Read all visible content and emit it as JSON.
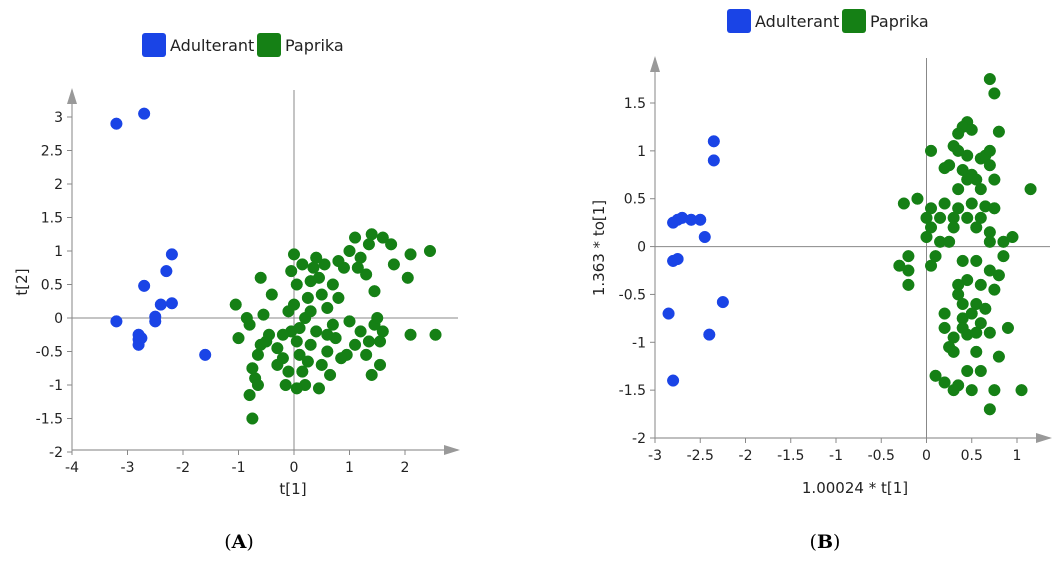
{
  "chart_data": [
    {
      "type": "scatter",
      "panel_label": "A",
      "xlabel": "t[1]",
      "ylabel": "t[2]",
      "xlim": [
        -4,
        2.5
      ],
      "ylim": [
        -2,
        3.25
      ],
      "x_ticks": [
        -4,
        -3,
        -2,
        -1,
        0,
        1,
        2
      ],
      "y_ticks": [
        3,
        2.5,
        2,
        1.5,
        1,
        0.5,
        0,
        -0.5,
        -1,
        -1.5,
        -2
      ],
      "x_tick_labels": [
        "-4",
        "-3",
        "-2",
        "-1",
        "0",
        "1",
        "2"
      ],
      "y_tick_labels": [
        "3",
        "2.5",
        "2",
        "1.5",
        "1",
        "0.5",
        "0",
        "-0.5",
        "-1",
        "-1.5",
        "-2"
      ],
      "legend": [
        "Adulterant",
        "Paprika"
      ],
      "legend_position": "top",
      "colors": {
        "Adulterant": "#1a44e6",
        "Paprika": "#158015"
      },
      "series": [
        {
          "name": "Adulterant",
          "points": [
            [
              -3.2,
              2.9
            ],
            [
              -2.7,
              3.05
            ],
            [
              -2.7,
              0.48
            ],
            [
              -2.2,
              0.95
            ],
            [
              -2.3,
              0.7
            ],
            [
              -2.2,
              0.22
            ],
            [
              -2.4,
              0.2
            ],
            [
              -3.2,
              -0.05
            ],
            [
              -2.5,
              0.02
            ],
            [
              -2.5,
              -0.05
            ],
            [
              -2.8,
              -0.25
            ],
            [
              -2.8,
              -0.32
            ],
            [
              -2.8,
              -0.4
            ],
            [
              -2.75,
              -0.3
            ],
            [
              -1.6,
              -0.55
            ]
          ]
        },
        {
          "name": "Paprika",
          "points": [
            [
              -1.05,
              0.2
            ],
            [
              -1.0,
              -0.3
            ],
            [
              -0.8,
              -0.1
            ],
            [
              -0.6,
              0.6
            ],
            [
              -0.55,
              0.05
            ],
            [
              -0.4,
              0.35
            ],
            [
              -0.6,
              -0.4
            ],
            [
              -0.65,
              -0.55
            ],
            [
              -0.7,
              -0.9
            ],
            [
              -0.65,
              -1.0
            ],
            [
              -0.8,
              -1.15
            ],
            [
              -0.75,
              -0.75
            ],
            [
              -0.45,
              -0.25
            ],
            [
              -0.3,
              -0.45
            ],
            [
              -0.2,
              -0.6
            ],
            [
              -0.3,
              -0.7
            ],
            [
              -0.1,
              -0.8
            ],
            [
              -0.15,
              -1.0
            ],
            [
              -0.1,
              0.1
            ],
            [
              -0.05,
              0.7
            ],
            [
              0.0,
              0.95
            ],
            [
              0.05,
              0.5
            ],
            [
              0.0,
              0.2
            ],
            [
              -0.05,
              -0.2
            ],
            [
              0.05,
              -0.35
            ],
            [
              0.1,
              -0.55
            ],
            [
              0.15,
              -0.8
            ],
            [
              0.2,
              -1.0
            ],
            [
              0.05,
              -1.05
            ],
            [
              0.2,
              0.0
            ],
            [
              0.25,
              0.3
            ],
            [
              0.3,
              0.55
            ],
            [
              0.35,
              0.75
            ],
            [
              0.4,
              0.9
            ],
            [
              0.45,
              0.6
            ],
            [
              0.5,
              0.35
            ],
            [
              0.55,
              0.8
            ],
            [
              0.6,
              0.15
            ],
            [
              0.7,
              -0.1
            ],
            [
              0.75,
              -0.3
            ],
            [
              0.6,
              -0.5
            ],
            [
              0.5,
              -0.7
            ],
            [
              0.65,
              -0.85
            ],
            [
              0.3,
              -0.4
            ],
            [
              0.4,
              -0.2
            ],
            [
              0.7,
              0.5
            ],
            [
              0.8,
              0.85
            ],
            [
              0.9,
              0.75
            ],
            [
              1.0,
              1.0
            ],
            [
              1.1,
              1.2
            ],
            [
              1.2,
              0.9
            ],
            [
              1.3,
              0.65
            ],
            [
              1.35,
              1.1
            ],
            [
              1.4,
              1.25
            ],
            [
              1.45,
              0.4
            ],
            [
              1.0,
              -0.05
            ],
            [
              1.1,
              -0.4
            ],
            [
              1.2,
              -0.2
            ],
            [
              0.95,
              -0.55
            ],
            [
              0.85,
              -0.6
            ],
            [
              1.3,
              -0.55
            ],
            [
              1.4,
              -0.85
            ],
            [
              1.35,
              -0.35
            ],
            [
              1.55,
              -0.7
            ],
            [
              1.55,
              -0.35
            ],
            [
              1.6,
              -0.2
            ],
            [
              1.45,
              -0.1
            ],
            [
              1.6,
              1.2
            ],
            [
              1.75,
              1.1
            ],
            [
              1.8,
              0.8
            ],
            [
              2.05,
              0.6
            ],
            [
              2.1,
              0.95
            ],
            [
              2.1,
              -0.25
            ],
            [
              2.45,
              1.0
            ],
            [
              2.55,
              -0.25
            ],
            [
              1.5,
              0.0
            ],
            [
              1.15,
              0.75
            ],
            [
              0.8,
              0.3
            ],
            [
              0.3,
              0.1
            ],
            [
              0.1,
              -0.15
            ],
            [
              0.25,
              -0.65
            ],
            [
              0.6,
              -0.25
            ],
            [
              -0.2,
              -0.25
            ],
            [
              -0.5,
              -0.35
            ],
            [
              -0.85,
              0.0
            ],
            [
              -0.75,
              -1.5
            ],
            [
              0.15,
              0.8
            ],
            [
              0.45,
              -1.05
            ]
          ]
        }
      ]
    },
    {
      "type": "scatter",
      "panel_label": "B",
      "xlabel": "1.00024 * t[1]",
      "ylabel": "1.363 * to[1]",
      "xlim": [
        -3,
        1.4
      ],
      "ylim": [
        -2,
        1.95
      ],
      "x_ticks": [
        -3,
        -2.5,
        -2,
        -1.5,
        -1,
        -0.5,
        0,
        0.5,
        1
      ],
      "y_ticks": [
        1.5,
        1,
        0.5,
        0,
        -0.5,
        -1,
        -1.5,
        -2
      ],
      "x_tick_labels": [
        "-3",
        "-2.5",
        "-2",
        "-1.5",
        "-1",
        "-0.5",
        "0",
        "0.5",
        "1"
      ],
      "y_tick_labels": [
        "1.5",
        "1",
        "0.5",
        "0",
        "-0.5",
        "-1",
        "-1.5",
        "-2"
      ],
      "legend": [
        "Adulterant",
        "Paprika"
      ],
      "legend_position": "top",
      "colors": {
        "Adulterant": "#1a44e6",
        "Paprika": "#158015"
      },
      "series": [
        {
          "name": "Adulterant",
          "points": [
            [
              -2.35,
              1.1
            ],
            [
              -2.35,
              0.9
            ],
            [
              -2.8,
              0.25
            ],
            [
              -2.75,
              0.28
            ],
            [
              -2.7,
              0.3
            ],
            [
              -2.6,
              0.28
            ],
            [
              -2.5,
              0.28
            ],
            [
              -2.8,
              -0.15
            ],
            [
              -2.75,
              -0.13
            ],
            [
              -2.45,
              0.1
            ],
            [
              -2.85,
              -0.7
            ],
            [
              -2.25,
              -0.58
            ],
            [
              -2.4,
              -0.92
            ],
            [
              -2.8,
              -1.4
            ]
          ]
        },
        {
          "name": "Paprika",
          "points": [
            [
              0.7,
              1.75
            ],
            [
              0.75,
              1.6
            ],
            [
              0.45,
              1.3
            ],
            [
              0.4,
              1.25
            ],
            [
              0.5,
              1.22
            ],
            [
              0.35,
              1.18
            ],
            [
              0.3,
              1.05
            ],
            [
              0.35,
              1.0
            ],
            [
              0.05,
              1.0
            ],
            [
              0.45,
              0.95
            ],
            [
              0.6,
              0.92
            ],
            [
              0.65,
              0.95
            ],
            [
              0.8,
              1.2
            ],
            [
              0.7,
              1.0
            ],
            [
              0.7,
              0.85
            ],
            [
              0.25,
              0.85
            ],
            [
              0.2,
              0.82
            ],
            [
              0.4,
              0.8
            ],
            [
              0.5,
              0.75
            ],
            [
              0.55,
              0.7
            ],
            [
              0.45,
              0.7
            ],
            [
              0.75,
              0.7
            ],
            [
              0.6,
              0.6
            ],
            [
              0.35,
              0.6
            ],
            [
              -0.1,
              0.5
            ],
            [
              -0.25,
              0.45
            ],
            [
              0.05,
              0.4
            ],
            [
              0.2,
              0.45
            ],
            [
              0.35,
              0.4
            ],
            [
              0.5,
              0.45
            ],
            [
              0.65,
              0.42
            ],
            [
              0.75,
              0.4
            ],
            [
              1.15,
              0.6
            ],
            [
              0.0,
              0.3
            ],
            [
              0.15,
              0.3
            ],
            [
              0.3,
              0.3
            ],
            [
              0.45,
              0.3
            ],
            [
              0.6,
              0.3
            ],
            [
              0.05,
              0.2
            ],
            [
              0.3,
              0.2
            ],
            [
              0.55,
              0.2
            ],
            [
              0.7,
              0.15
            ],
            [
              0.0,
              0.1
            ],
            [
              0.15,
              0.05
            ],
            [
              0.25,
              0.05
            ],
            [
              0.7,
              0.05
            ],
            [
              0.85,
              0.05
            ],
            [
              0.95,
              0.1
            ],
            [
              -0.3,
              -0.2
            ],
            [
              -0.2,
              -0.1
            ],
            [
              -0.2,
              -0.25
            ],
            [
              -0.2,
              -0.4
            ],
            [
              0.05,
              -0.2
            ],
            [
              0.1,
              -0.1
            ],
            [
              0.4,
              -0.15
            ],
            [
              0.55,
              -0.15
            ],
            [
              0.7,
              -0.25
            ],
            [
              0.8,
              -0.3
            ],
            [
              0.85,
              -0.1
            ],
            [
              0.45,
              -0.35
            ],
            [
              0.35,
              -0.4
            ],
            [
              0.35,
              -0.5
            ],
            [
              0.6,
              -0.4
            ],
            [
              0.75,
              -0.45
            ],
            [
              0.4,
              -0.6
            ],
            [
              0.55,
              -0.6
            ],
            [
              0.65,
              -0.65
            ],
            [
              0.2,
              -0.7
            ],
            [
              0.4,
              -0.75
            ],
            [
              0.5,
              -0.7
            ],
            [
              0.6,
              -0.8
            ],
            [
              0.7,
              -0.9
            ],
            [
              0.9,
              -0.85
            ],
            [
              0.2,
              -0.85
            ],
            [
              0.4,
              -0.85
            ],
            [
              0.45,
              -0.92
            ],
            [
              0.55,
              -0.9
            ],
            [
              0.3,
              -0.95
            ],
            [
              0.25,
              -1.05
            ],
            [
              0.3,
              -1.1
            ],
            [
              0.55,
              -1.1
            ],
            [
              0.8,
              -1.15
            ],
            [
              0.45,
              -1.3
            ],
            [
              0.6,
              -1.3
            ],
            [
              0.1,
              -1.35
            ],
            [
              0.2,
              -1.42
            ],
            [
              0.35,
              -1.45
            ],
            [
              0.5,
              -1.5
            ],
            [
              0.75,
              -1.5
            ],
            [
              0.3,
              -1.5
            ],
            [
              1.05,
              -1.5
            ],
            [
              0.7,
              -1.7
            ]
          ]
        }
      ]
    }
  ],
  "captions": {
    "a": "A",
    "b": "B"
  }
}
